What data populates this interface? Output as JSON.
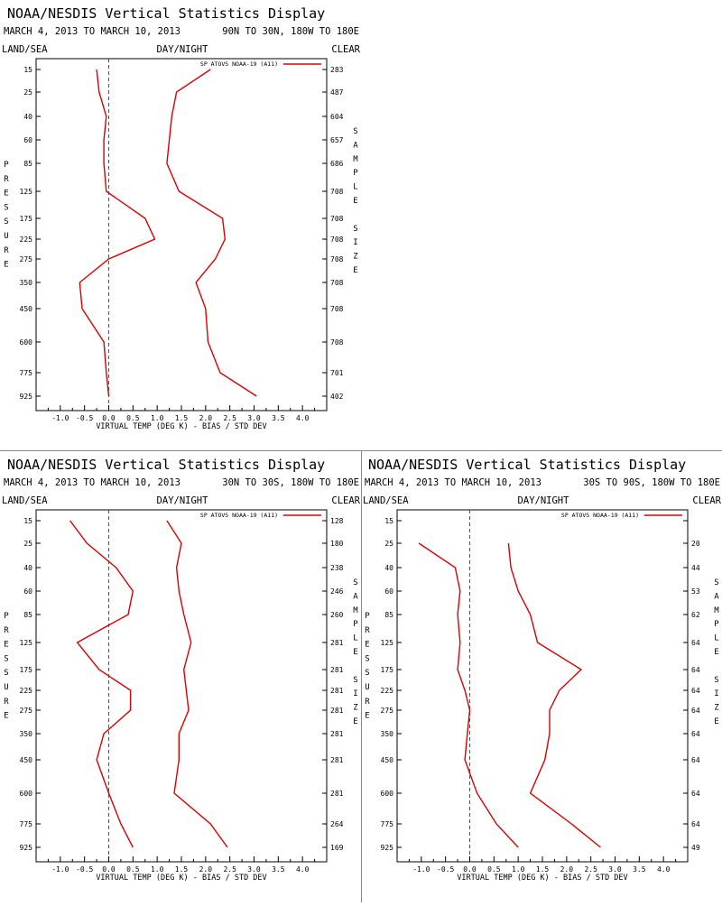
{
  "chart_data": [
    {
      "type": "line",
      "title": "NOAA/NESDIS Vertical Statistics Display",
      "date_range": "MARCH 4, 2013 TO MARCH 10, 2013",
      "region": "90N TO 30N, 180W TO 180E",
      "surface": "LAND/SEA",
      "time_of_day": "DAY/NIGHT",
      "sky": "CLEAR",
      "ylabel": "PRESSURE",
      "right_label": "SAMPLE SIZE",
      "xlabel": "VIRTUAL TEMP (DEG K) - BIAS / STD DEV",
      "xlim": [
        -1.5,
        4.5
      ],
      "xticks": [
        "-1.0",
        "-0.5",
        "0.0",
        "0.5",
        "1.0",
        "1.5",
        "2.0",
        "2.5",
        "3.0",
        "3.5",
        "4.0"
      ],
      "pressure_levels": [
        "15",
        "25",
        "40",
        "60",
        "85",
        "125",
        "175",
        "225",
        "275",
        "350",
        "450",
        "600",
        "775",
        "925"
      ],
      "legend": "SP ATOVS NOAA-19 (A11)",
      "sample_size": [
        "283",
        "487",
        "604",
        "657",
        "686",
        "708",
        "708",
        "708",
        "708",
        "708",
        "708",
        "708",
        "701",
        "402"
      ],
      "series": [
        {
          "name": "bias",
          "color": "#dd0000",
          "values": [
            -0.25,
            -0.2,
            -0.05,
            -0.1,
            -0.1,
            -0.05,
            0.75,
            0.95,
            0.0,
            -0.6,
            -0.55,
            -0.1,
            -0.05,
            0.0
          ]
        },
        {
          "name": "std_dev",
          "color": "#dd0000",
          "values": [
            2.1,
            1.4,
            1.3,
            1.25,
            1.2,
            1.45,
            2.35,
            2.4,
            2.2,
            1.8,
            2.0,
            2.05,
            2.3,
            3.05
          ]
        }
      ]
    },
    {
      "type": "line",
      "title": "NOAA/NESDIS Vertical Statistics Display",
      "date_range": "MARCH 4, 2013 TO MARCH 10, 2013",
      "region": "30N TO 30S, 180W TO 180E",
      "surface": "LAND/SEA",
      "time_of_day": "DAY/NIGHT",
      "sky": "CLEAR",
      "ylabel": "PRESSURE",
      "right_label": "SAMPLE SIZE",
      "xlabel": "VIRTUAL TEMP (DEG K) - BIAS / STD DEV",
      "xlim": [
        -1.5,
        4.5
      ],
      "xticks": [
        "-1.0",
        "-0.5",
        "0.0",
        "0.5",
        "1.0",
        "1.5",
        "2.0",
        "2.5",
        "3.0",
        "3.5",
        "4.0"
      ],
      "pressure_levels": [
        "15",
        "25",
        "40",
        "60",
        "85",
        "125",
        "175",
        "225",
        "275",
        "350",
        "450",
        "600",
        "775",
        "925"
      ],
      "legend": "SP ATOVS NOAA-19 (A11)",
      "sample_size": [
        "128",
        "180",
        "238",
        "246",
        "260",
        "281",
        "281",
        "281",
        "281",
        "281",
        "281",
        "281",
        "264",
        "169"
      ],
      "series": [
        {
          "name": "bias",
          "color": "#dd0000",
          "values": [
            -0.8,
            -0.45,
            0.15,
            0.5,
            0.4,
            -0.65,
            -0.2,
            0.45,
            0.45,
            -0.1,
            -0.25,
            0.0,
            0.25,
            0.5
          ]
        },
        {
          "name": "std_dev",
          "color": "#dd0000",
          "values": [
            1.2,
            1.5,
            1.4,
            1.45,
            1.55,
            1.7,
            1.55,
            1.6,
            1.65,
            1.45,
            1.45,
            1.35,
            2.1,
            2.45
          ]
        }
      ]
    },
    {
      "type": "line",
      "title": "NOAA/NESDIS Vertical Statistics Display",
      "date_range": "MARCH 4, 2013 TO MARCH 10, 2013",
      "region": "30S TO 90S, 180W TO 180E",
      "surface": "LAND/SEA",
      "time_of_day": "DAY/NIGHT",
      "sky": "CLEAR",
      "ylabel": "PRESSURE",
      "right_label": "SAMPLE SIZE",
      "xlabel": "VIRTUAL TEMP (DEG K) - BIAS / STD DEV",
      "xlim": [
        -1.5,
        4.5
      ],
      "xticks": [
        "-1.0",
        "-0.5",
        "0.0",
        "0.5",
        "1.0",
        "1.5",
        "2.0",
        "2.5",
        "3.0",
        "3.5",
        "4.0"
      ],
      "pressure_levels": [
        "15",
        "25",
        "40",
        "60",
        "85",
        "125",
        "175",
        "225",
        "275",
        "350",
        "450",
        "600",
        "775",
        "925"
      ],
      "legend": "SP ATOVS NOAA-19 (A11)",
      "sample_size": [
        "",
        "20",
        "44",
        "53",
        "62",
        "64",
        "64",
        "64",
        "64",
        "64",
        "64",
        "64",
        "64",
        "49"
      ],
      "series": [
        {
          "name": "bias",
          "color": "#dd0000",
          "values": [
            null,
            -1.05,
            -0.3,
            -0.2,
            -0.25,
            -0.2,
            -0.25,
            -0.1,
            0.0,
            -0.05,
            -0.1,
            0.15,
            0.55,
            1.0
          ]
        },
        {
          "name": "std_dev",
          "color": "#dd0000",
          "values": [
            null,
            0.8,
            0.85,
            1.0,
            1.25,
            1.4,
            2.3,
            1.85,
            1.65,
            1.65,
            1.55,
            1.25,
            2.1,
            2.7
          ]
        }
      ]
    }
  ]
}
